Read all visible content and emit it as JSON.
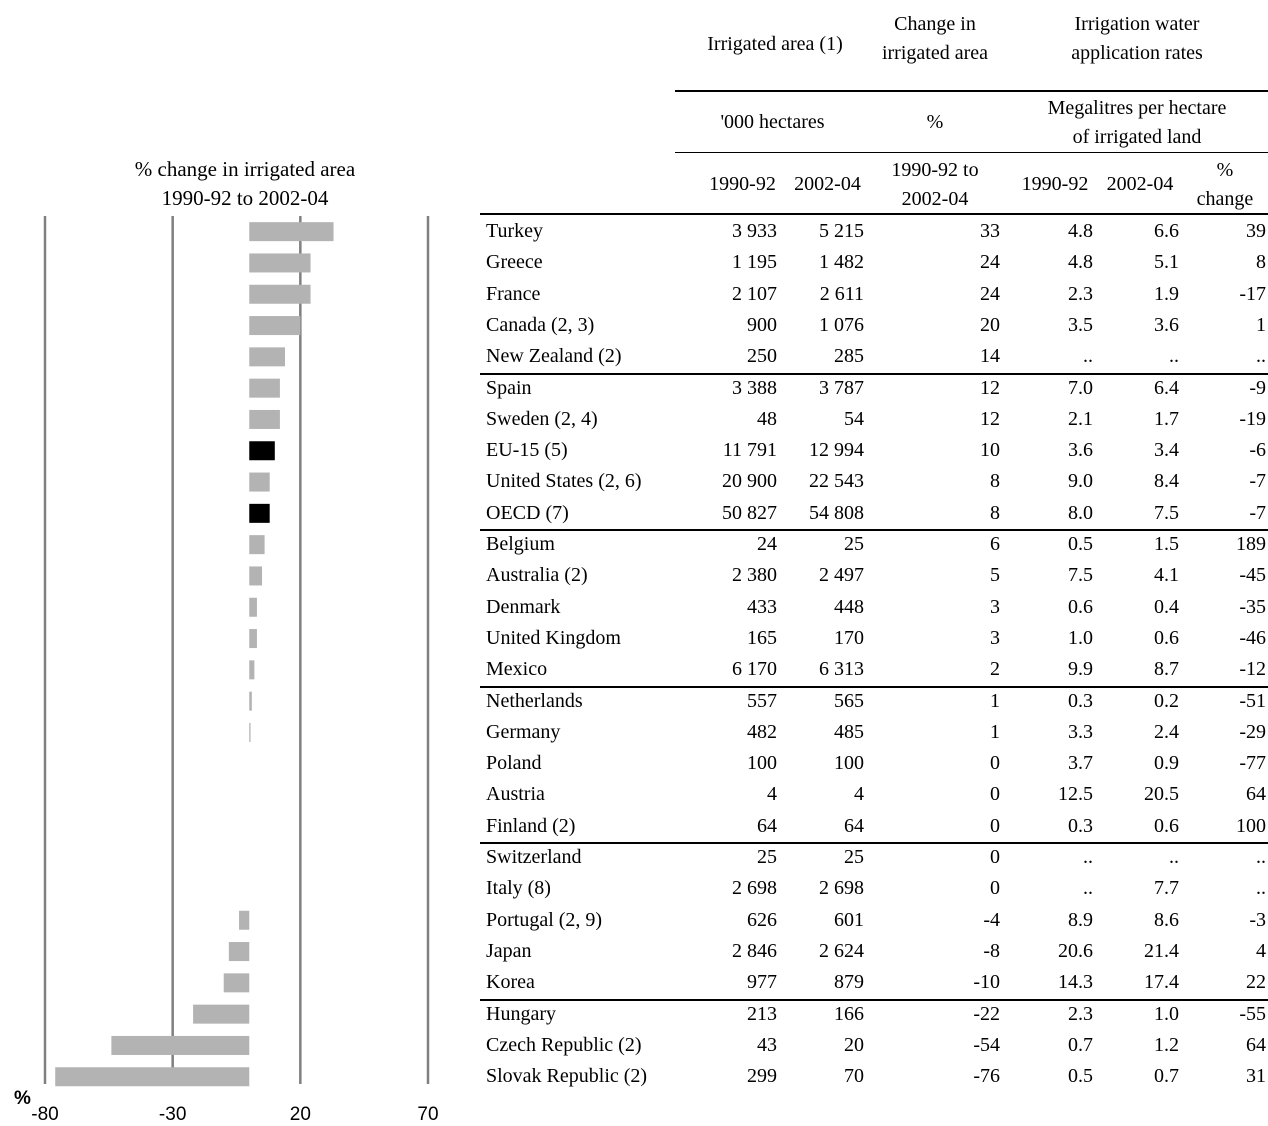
{
  "chart_data": {
    "type": "bar",
    "orientation": "horizontal",
    "title": "% change in irrigated area\n1990-92 to 2002-04",
    "title_lines": [
      "% change in irrigated area",
      "1990-92 to 2002-04"
    ],
    "xlabel": "%",
    "xlim": [
      -80,
      70
    ],
    "xticks": [
      -80,
      -30,
      20,
      70
    ],
    "grid": true,
    "highlight_color": "#000000",
    "bar_color": "#b3b3b3",
    "categories": [
      "Turkey",
      "Greece",
      "France",
      "Canada (2, 3)",
      "New Zealand (2)",
      "Spain",
      "Sweden (2, 4)",
      "EU-15 (5)",
      "United States (2, 6)",
      "OECD (7)",
      "Belgium",
      "Australia (2)",
      "Denmark",
      "United Kingdom",
      "Mexico",
      "Netherlands",
      "Germany",
      "Poland",
      "Austria",
      "Finland (2)",
      "Switzerland",
      "Italy (8)",
      "Portugal (2, 9)",
      "Japan",
      "Korea",
      "Hungary",
      "Czech Republic (2)",
      "Slovak Republic (2)"
    ],
    "values": [
      33,
      24,
      24,
      20,
      14,
      12,
      12,
      10,
      8,
      8,
      6,
      5,
      3,
      3,
      2,
      1,
      0.5,
      0,
      0,
      0,
      0,
      0,
      -4,
      -8,
      -10,
      -22,
      -54,
      -76
    ],
    "highlighted": [
      "EU-15 (5)",
      "OECD (7)"
    ]
  },
  "table": {
    "group_headers": {
      "irrigated_area": "Irrigated area (1)",
      "change": "Change in\nirrigated area",
      "rates": "Irrigation water\napplication rates"
    },
    "unit_headers": {
      "hectares": "'000 hectares",
      "percent": "%",
      "megalitres": "Megalitres per hectare\nof irrigated land"
    },
    "column_headers": {
      "area_1990": "1990-92",
      "area_2002": "2002-04",
      "change_period": "1990-92 to\n2002-04",
      "rate_1990": "1990-92",
      "rate_2002": "2002-04",
      "rate_change": "%\nchange"
    },
    "rows": [
      {
        "name": "Turkey",
        "a1": "3 933",
        "a2": "5 215",
        "chg": "33",
        "r1": "4.8",
        "r2": "6.6",
        "rc": "39"
      },
      {
        "name": "Greece",
        "a1": "1 195",
        "a2": "1 482",
        "chg": "24",
        "r1": "4.8",
        "r2": "5.1",
        "rc": "8"
      },
      {
        "name": "France",
        "a1": "2 107",
        "a2": "2 611",
        "chg": "24",
        "r1": "2.3",
        "r2": "1.9",
        "rc": "-17"
      },
      {
        "name": "Canada (2, 3)",
        "a1": "900",
        "a2": "1 076",
        "chg": "20",
        "r1": "3.5",
        "r2": "3.6",
        "rc": "1"
      },
      {
        "name": "New Zealand (2)",
        "a1": "250",
        "a2": "285",
        "chg": "14",
        "r1": "..",
        "r2": "..",
        "rc": ".."
      },
      {
        "name": "Spain",
        "a1": "3 388",
        "a2": "3 787",
        "chg": "12",
        "r1": "7.0",
        "r2": "6.4",
        "rc": "-9"
      },
      {
        "name": "Sweden (2, 4)",
        "a1": "48",
        "a2": "54",
        "chg": "12",
        "r1": "2.1",
        "r2": "1.7",
        "rc": "-19"
      },
      {
        "name": "EU-15 (5)",
        "a1": "11 791",
        "a2": "12 994",
        "chg": "10",
        "r1": "3.6",
        "r2": "3.4",
        "rc": "-6"
      },
      {
        "name": "United States (2, 6)",
        "a1": "20 900",
        "a2": "22 543",
        "chg": "8",
        "r1": "9.0",
        "r2": "8.4",
        "rc": "-7"
      },
      {
        "name": "OECD (7)",
        "a1": "50 827",
        "a2": "54 808",
        "chg": "8",
        "r1": "8.0",
        "r2": "7.5",
        "rc": "-7"
      },
      {
        "name": "Belgium",
        "a1": "24",
        "a2": "25",
        "chg": "6",
        "r1": "0.5",
        "r2": "1.5",
        "rc": "189"
      },
      {
        "name": "Australia (2)",
        "a1": "2 380",
        "a2": "2 497",
        "chg": "5",
        "r1": "7.5",
        "r2": "4.1",
        "rc": "-45"
      },
      {
        "name": "Denmark",
        "a1": "433",
        "a2": "448",
        "chg": "3",
        "r1": "0.6",
        "r2": "0.4",
        "rc": "-35"
      },
      {
        "name": "United Kingdom",
        "a1": "165",
        "a2": "170",
        "chg": "3",
        "r1": "1.0",
        "r2": "0.6",
        "rc": "-46"
      },
      {
        "name": "Mexico",
        "a1": "6 170",
        "a2": "6 313",
        "chg": "2",
        "r1": "9.9",
        "r2": "8.7",
        "rc": "-12"
      },
      {
        "name": "Netherlands",
        "a1": "557",
        "a2": "565",
        "chg": "1",
        "r1": "0.3",
        "r2": "0.2",
        "rc": "-51"
      },
      {
        "name": "Germany",
        "a1": "482",
        "a2": "485",
        "chg": "1",
        "r1": "3.3",
        "r2": "2.4",
        "rc": "-29"
      },
      {
        "name": "Poland",
        "a1": "100",
        "a2": "100",
        "chg": "0",
        "r1": "3.7",
        "r2": "0.9",
        "rc": "-77"
      },
      {
        "name": "Austria",
        "a1": "4",
        "a2": "4",
        "chg": "0",
        "r1": "12.5",
        "r2": "20.5",
        "rc": "64"
      },
      {
        "name": "Finland (2)",
        "a1": "64",
        "a2": "64",
        "chg": "0",
        "r1": "0.3",
        "r2": "0.6",
        "rc": "100"
      },
      {
        "name": "Switzerland",
        "a1": "25",
        "a2": "25",
        "chg": "0",
        "r1": "..",
        "r2": "..",
        "rc": ".."
      },
      {
        "name": "Italy (8)",
        "a1": "2 698",
        "a2": "2 698",
        "chg": "0",
        "r1": "..",
        "r2": "7.7",
        "rc": ".."
      },
      {
        "name": "Portugal (2, 9)",
        "a1": "626",
        "a2": "601",
        "chg": "-4",
        "r1": "8.9",
        "r2": "8.6",
        "rc": "-3"
      },
      {
        "name": "Japan",
        "a1": "2 846",
        "a2": "2 624",
        "chg": "-8",
        "r1": "20.6",
        "r2": "21.4",
        "rc": "4"
      },
      {
        "name": "Korea",
        "a1": "977",
        "a2": "879",
        "chg": "-10",
        "r1": "14.3",
        "r2": "17.4",
        "rc": "22"
      },
      {
        "name": "Hungary",
        "a1": "213",
        "a2": "166",
        "chg": "-22",
        "r1": "2.3",
        "r2": "1.0",
        "rc": "-55"
      },
      {
        "name": "Czech Republic (2)",
        "a1": "43",
        "a2": "20",
        "chg": "-54",
        "r1": "0.7",
        "r2": "1.2",
        "rc": "64"
      },
      {
        "name": "Slovak Republic (2)",
        "a1": "299",
        "a2": "70",
        "chg": "-76",
        "r1": "0.5",
        "r2": "0.7",
        "rc": "31"
      }
    ]
  }
}
